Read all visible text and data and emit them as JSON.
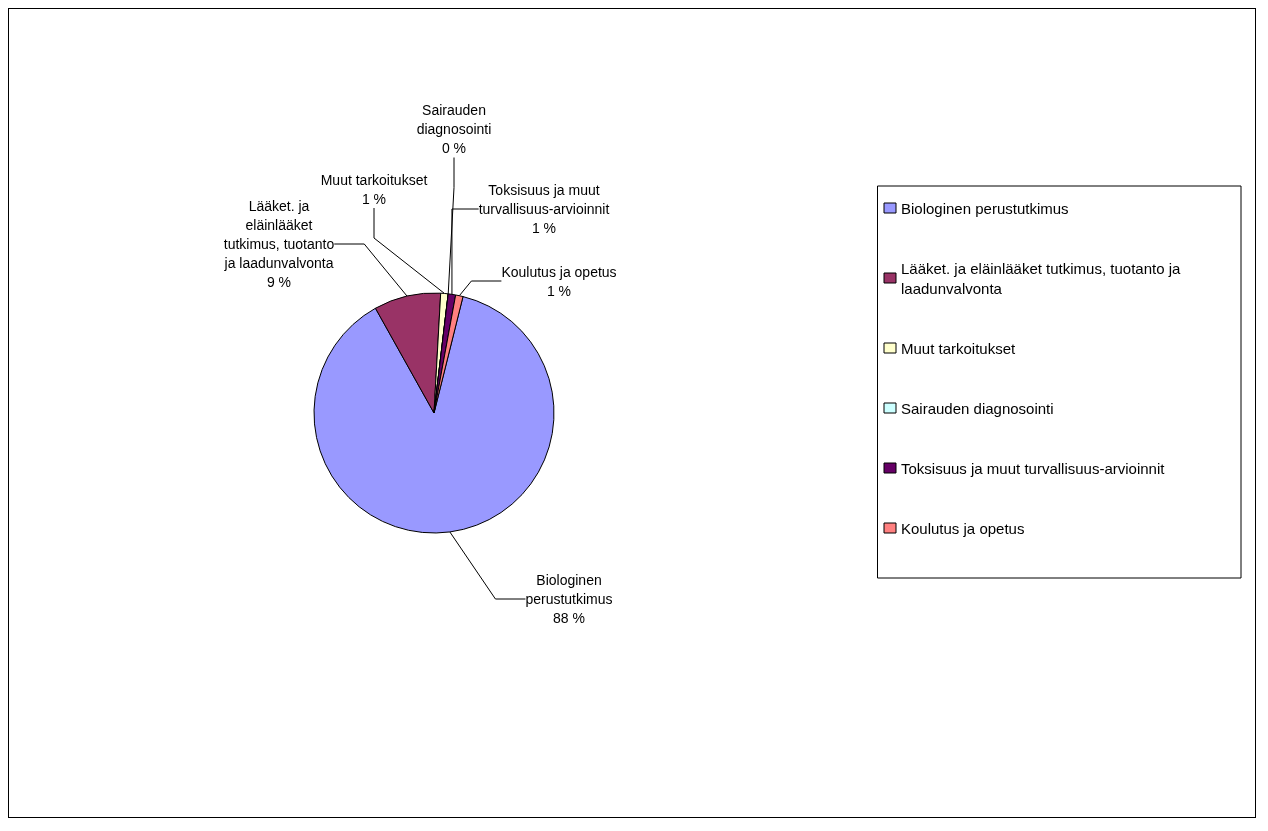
{
  "chart_data": {
    "type": "pie",
    "categories": [
      "Biologinen perustutkimus",
      "Lääket. ja eläinlääket tutkimus, tuotanto ja laadunvalvonta",
      "Muut tarkoitukset",
      "Sairauden diagnosointi",
      "Toksisuus ja muut turvallisuus-arvioinnit",
      "Koulutus ja opetus"
    ],
    "values": [
      88,
      9,
      1,
      0,
      1,
      1
    ],
    "value_labels": [
      "88 %",
      "9 %",
      "1 %",
      "0 %",
      "1 %",
      "1 %"
    ],
    "colors": [
      "#9999ff",
      "#993366",
      "#ffffcc",
      "#ccffff",
      "#660066",
      "#ff8080"
    ],
    "legend": "right"
  }
}
